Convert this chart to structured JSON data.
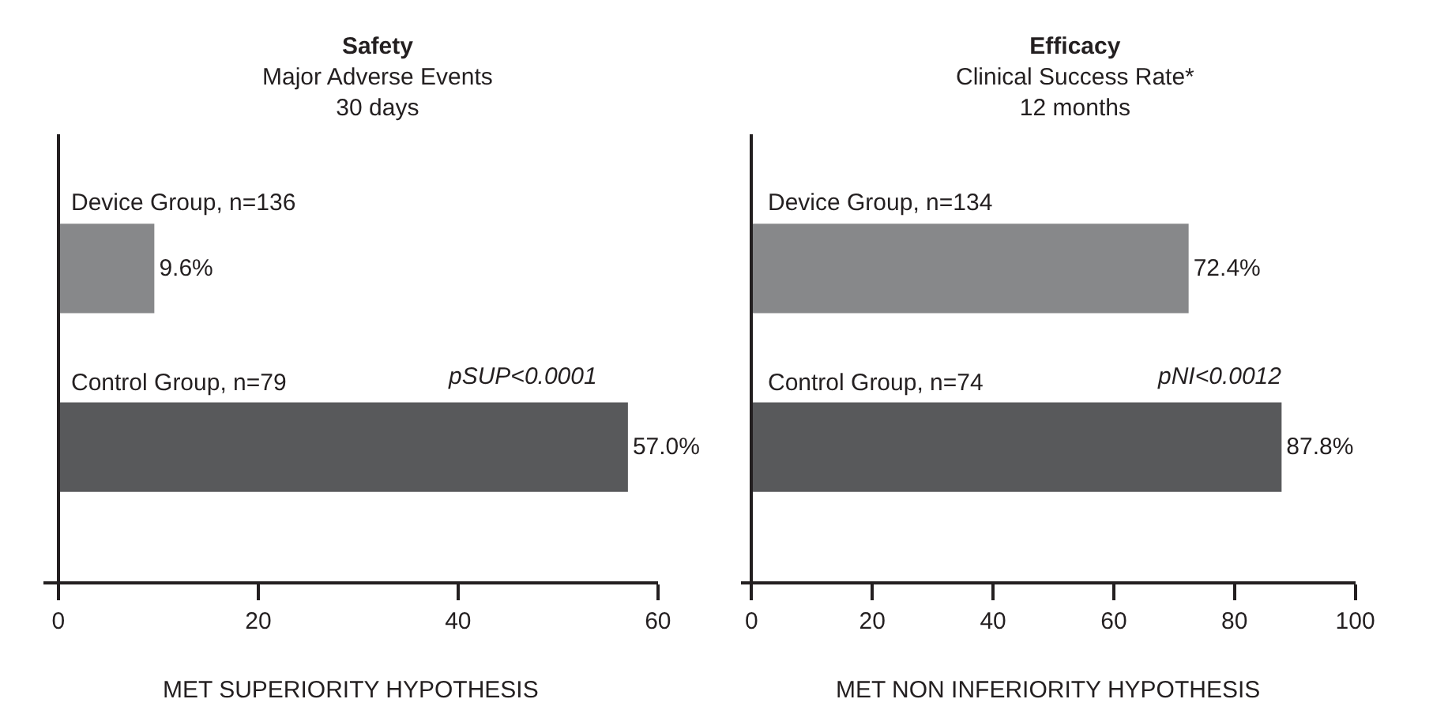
{
  "chart_data": [
    {
      "type": "bar",
      "orientation": "horizontal",
      "title": "Safety",
      "subtitle": "Major Adverse Events\n30 days",
      "xlabel": "MET SUPERIORITY HYPOTHESIS",
      "categories": [
        "Device Group, n=136",
        "Control Group, n=79"
      ],
      "values": [
        9.6,
        57.0
      ],
      "colors": [
        "#87888a",
        "#58595b"
      ],
      "value_labels": [
        "9.6%",
        "57.0%"
      ],
      "annotations": [
        "pSUP<0.0001"
      ],
      "xlim": [
        -1.5,
        60
      ],
      "xticks": [
        0,
        20,
        40,
        60
      ],
      "tick_labels": "x"
    },
    {
      "type": "bar",
      "orientation": "horizontal",
      "title": "Efficacy",
      "subtitle": "Clinical Success Rate*\n12 months",
      "xlabel": "MET NON INFERIORITY HYPOTHESIS",
      "categories": [
        "Device Group, n=134",
        "Control Group, n=74"
      ],
      "values": [
        72.4,
        87.8
      ],
      "colors": [
        "#87888a",
        "#58595b"
      ],
      "value_labels": [
        "72.4%",
        "87.8%"
      ],
      "annotations": [
        "pNI<0.0012"
      ],
      "xlim": [
        -1.8,
        100
      ],
      "xticks": [
        0,
        20,
        40,
        60,
        80,
        100
      ],
      "tick_labels": "x"
    }
  ]
}
